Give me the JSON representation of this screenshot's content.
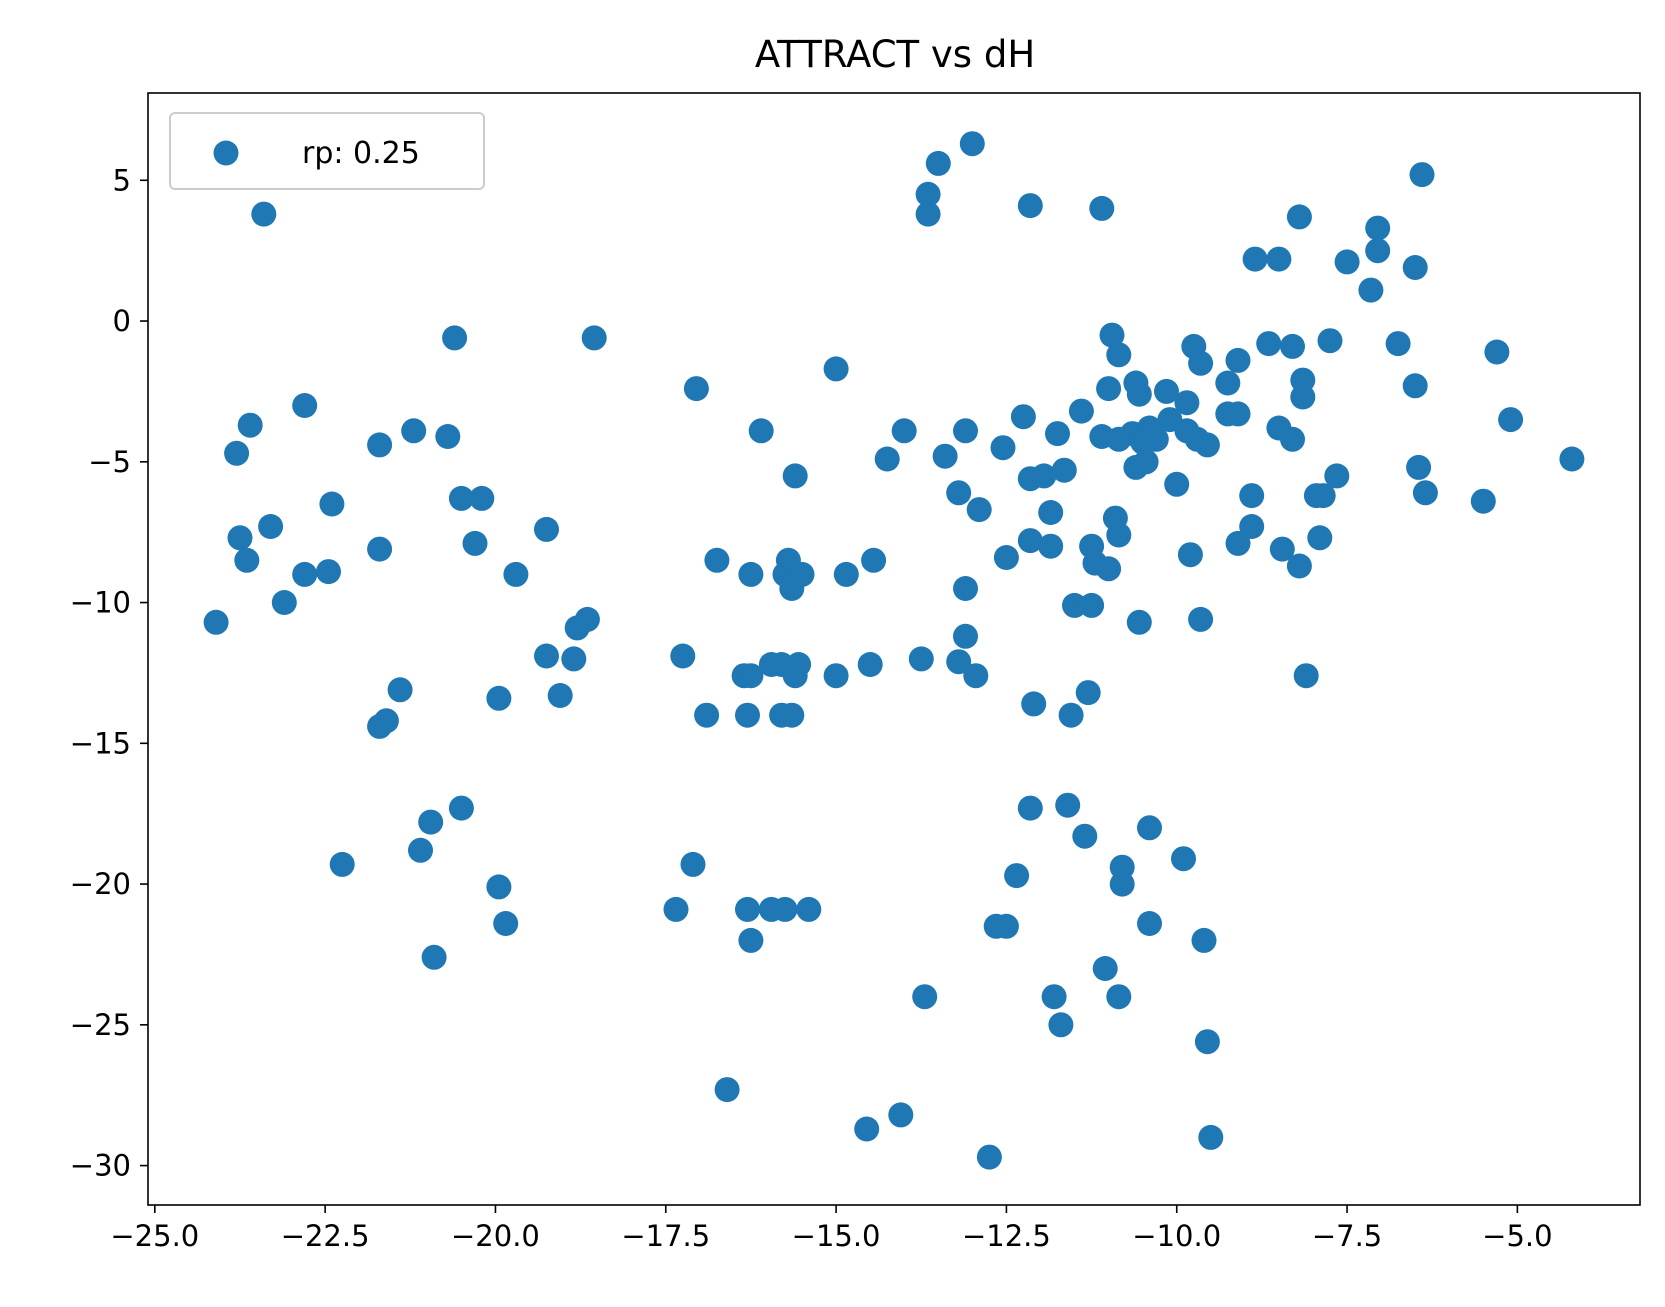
{
  "chart_data": {
    "type": "scatter",
    "title": "ATTRACT vs dH",
    "xlabel": "",
    "ylabel": "",
    "xlim": [
      -25.1,
      -3.2
    ],
    "ylim": [
      -31.4,
      8.1
    ],
    "x_ticks": [
      -25.0,
      -22.5,
      -20.0,
      -17.5,
      -15.0,
      -12.5,
      -10.0,
      -7.5,
      -5.0
    ],
    "x_tick_labels": [
      "−25.0",
      "−22.5",
      "−20.0",
      "−17.5",
      "−15.0",
      "−12.5",
      "−10.0",
      "−7.5",
      "−5.0"
    ],
    "y_ticks": [
      5,
      0,
      -5,
      -10,
      -15,
      -20,
      -25,
      -30
    ],
    "y_tick_labels": [
      "5",
      "0",
      "−5",
      "−10",
      "−15",
      "−20",
      "−25",
      "−30"
    ],
    "grid": false,
    "legend_position": "upper-left",
    "series": [
      {
        "name": "rp: 0.25",
        "color": "#1f77b4",
        "points": [
          [
            -23.4,
            3.8
          ],
          [
            -24.1,
            -10.7
          ],
          [
            -23.8,
            -4.7
          ],
          [
            -23.6,
            -3.7
          ],
          [
            -23.75,
            -7.7
          ],
          [
            -23.65,
            -8.5
          ],
          [
            -23.3,
            -7.3
          ],
          [
            -23.1,
            -10.0
          ],
          [
            -22.8,
            -3.0
          ],
          [
            -22.8,
            -9.0
          ],
          [
            -22.45,
            -8.9
          ],
          [
            -22.4,
            -6.5
          ],
          [
            -22.25,
            -19.3
          ],
          [
            -21.7,
            -4.4
          ],
          [
            -21.7,
            -8.1
          ],
          [
            -21.7,
            -14.4
          ],
          [
            -21.6,
            -14.2
          ],
          [
            -21.4,
            -13.1
          ],
          [
            -21.2,
            -3.9
          ],
          [
            -21.1,
            -18.8
          ],
          [
            -20.95,
            -17.8
          ],
          [
            -20.9,
            -22.6
          ],
          [
            -20.7,
            -4.1
          ],
          [
            -20.6,
            -0.6
          ],
          [
            -20.5,
            -6.3
          ],
          [
            -20.5,
            -17.3
          ],
          [
            -20.3,
            -7.9
          ],
          [
            -20.2,
            -6.3
          ],
          [
            -19.95,
            -20.1
          ],
          [
            -19.95,
            -13.4
          ],
          [
            -19.85,
            -21.4
          ],
          [
            -19.7,
            -9.0
          ],
          [
            -19.25,
            -7.4
          ],
          [
            -19.25,
            -11.9
          ],
          [
            -19.05,
            -13.3
          ],
          [
            -18.85,
            -12.0
          ],
          [
            -18.8,
            -10.9
          ],
          [
            -18.65,
            -10.6
          ],
          [
            -18.55,
            -0.6
          ],
          [
            -17.35,
            -20.9
          ],
          [
            -17.25,
            -11.9
          ],
          [
            -17.1,
            -19.3
          ],
          [
            -17.05,
            -2.4
          ],
          [
            -16.9,
            -14.0
          ],
          [
            -16.75,
            -8.5
          ],
          [
            -16.6,
            -27.3
          ],
          [
            -16.35,
            -12.6
          ],
          [
            -16.3,
            -20.9
          ],
          [
            -16.3,
            -14.0
          ],
          [
            -16.25,
            -12.6
          ],
          [
            -16.25,
            -9.0
          ],
          [
            -16.25,
            -22.0
          ],
          [
            -16.1,
            -3.9
          ],
          [
            -15.95,
            -12.2
          ],
          [
            -15.95,
            -20.9
          ],
          [
            -15.8,
            -14.0
          ],
          [
            -15.8,
            -12.2
          ],
          [
            -15.75,
            -20.9
          ],
          [
            -15.75,
            -9.0
          ],
          [
            -15.7,
            -8.5
          ],
          [
            -15.65,
            -14.0
          ],
          [
            -15.65,
            -9.5
          ],
          [
            -15.6,
            -12.6
          ],
          [
            -15.6,
            -5.5
          ],
          [
            -15.55,
            -12.2
          ],
          [
            -15.5,
            -9.0
          ],
          [
            -15.4,
            -20.9
          ],
          [
            -15.0,
            -12.6
          ],
          [
            -15.0,
            -1.7
          ],
          [
            -14.85,
            -9.0
          ],
          [
            -14.55,
            -28.7
          ],
          [
            -14.5,
            -12.2
          ],
          [
            -14.45,
            -8.5
          ],
          [
            -14.25,
            -4.9
          ],
          [
            -14.05,
            -28.2
          ],
          [
            -14.0,
            -3.9
          ],
          [
            -13.75,
            -12.0
          ],
          [
            -13.7,
            -24.0
          ],
          [
            -13.65,
            4.5
          ],
          [
            -13.65,
            3.8
          ],
          [
            -13.5,
            5.6
          ],
          [
            -13.4,
            -4.8
          ],
          [
            -13.2,
            -6.1
          ],
          [
            -13.2,
            -12.1
          ],
          [
            -13.1,
            -11.2
          ],
          [
            -13.1,
            -3.9
          ],
          [
            -13.1,
            -9.5
          ],
          [
            -13.0,
            6.3
          ],
          [
            -12.95,
            -12.6
          ],
          [
            -12.9,
            -6.7
          ],
          [
            -12.75,
            -29.7
          ],
          [
            -12.65,
            -21.5
          ],
          [
            -12.55,
            -4.5
          ],
          [
            -12.5,
            -8.4
          ],
          [
            -12.5,
            -21.5
          ],
          [
            -12.35,
            -19.7
          ],
          [
            -12.25,
            -3.4
          ],
          [
            -12.15,
            4.1
          ],
          [
            -12.15,
            -17.3
          ],
          [
            -12.15,
            -5.6
          ],
          [
            -12.15,
            -7.8
          ],
          [
            -12.1,
            -13.6
          ],
          [
            -11.95,
            -5.5
          ],
          [
            -11.85,
            -8.0
          ],
          [
            -11.85,
            -6.8
          ],
          [
            -11.8,
            -24.0
          ],
          [
            -11.75,
            -4.0
          ],
          [
            -11.7,
            -25.0
          ],
          [
            -11.65,
            -5.3
          ],
          [
            -11.6,
            -17.2
          ],
          [
            -11.55,
            -14.0
          ],
          [
            -11.5,
            -10.1
          ],
          [
            -11.4,
            -3.2
          ],
          [
            -11.35,
            -18.3
          ],
          [
            -11.3,
            -13.2
          ],
          [
            -11.25,
            -10.1
          ],
          [
            -11.25,
            -8.0
          ],
          [
            -11.2,
            -8.6
          ],
          [
            -11.1,
            4.0
          ],
          [
            -11.1,
            -4.1
          ],
          [
            -11.05,
            -23.0
          ],
          [
            -11.0,
            -2.4
          ],
          [
            -11.0,
            -8.8
          ],
          [
            -10.95,
            -0.5
          ],
          [
            -10.9,
            -7.0
          ],
          [
            -10.85,
            -7.6
          ],
          [
            -10.85,
            -1.2
          ],
          [
            -10.85,
            -4.2
          ],
          [
            -10.85,
            -24.0
          ],
          [
            -10.8,
            -19.4
          ],
          [
            -10.8,
            -20.0
          ],
          [
            -10.65,
            -4.0
          ],
          [
            -10.6,
            -2.2
          ],
          [
            -10.6,
            -5.2
          ],
          [
            -10.55,
            -10.7
          ],
          [
            -10.55,
            -2.6
          ],
          [
            -10.5,
            -4.3
          ],
          [
            -10.45,
            -5.0
          ],
          [
            -10.4,
            -3.8
          ],
          [
            -10.4,
            -18.0
          ],
          [
            -10.4,
            -21.4
          ],
          [
            -10.3,
            -4.2
          ],
          [
            -10.15,
            -2.5
          ],
          [
            -10.1,
            -3.5
          ],
          [
            -10.0,
            -5.8
          ],
          [
            -9.9,
            -19.1
          ],
          [
            -9.85,
            -2.9
          ],
          [
            -9.85,
            -3.9
          ],
          [
            -9.8,
            -8.3
          ],
          [
            -9.75,
            -0.9
          ],
          [
            -9.7,
            -4.2
          ],
          [
            -9.65,
            -10.6
          ],
          [
            -9.65,
            -1.5
          ],
          [
            -9.6,
            -22.0
          ],
          [
            -9.55,
            -25.6
          ],
          [
            -9.55,
            -4.4
          ],
          [
            -9.5,
            -29.0
          ],
          [
            -9.25,
            -2.2
          ],
          [
            -9.25,
            -3.3
          ],
          [
            -9.1,
            -3.3
          ],
          [
            -9.1,
            -7.9
          ],
          [
            -9.1,
            -1.4
          ],
          [
            -8.9,
            -7.3
          ],
          [
            -8.9,
            -6.2
          ],
          [
            -8.85,
            2.2
          ],
          [
            -8.65,
            -0.8
          ],
          [
            -8.5,
            2.2
          ],
          [
            -8.5,
            -3.8
          ],
          [
            -8.45,
            -8.1
          ],
          [
            -8.3,
            -4.2
          ],
          [
            -8.3,
            -0.9
          ],
          [
            -8.2,
            3.7
          ],
          [
            -8.2,
            -8.7
          ],
          [
            -8.15,
            -2.1
          ],
          [
            -8.15,
            -2.7
          ],
          [
            -8.1,
            -12.6
          ],
          [
            -7.95,
            -6.2
          ],
          [
            -7.9,
            -7.7
          ],
          [
            -7.85,
            -6.2
          ],
          [
            -7.75,
            -0.7
          ],
          [
            -7.65,
            -5.5
          ],
          [
            -7.5,
            2.1
          ],
          [
            -7.15,
            1.1
          ],
          [
            -7.05,
            3.3
          ],
          [
            -7.05,
            2.5
          ],
          [
            -6.75,
            -0.8
          ],
          [
            -6.5,
            1.9
          ],
          [
            -6.5,
            -2.3
          ],
          [
            -6.45,
            -5.2
          ],
          [
            -6.4,
            5.2
          ],
          [
            -6.35,
            -6.1
          ],
          [
            -5.5,
            -6.4
          ],
          [
            -5.3,
            -1.1
          ],
          [
            -5.1,
            -3.5
          ],
          [
            -4.2,
            -4.9
          ]
        ]
      }
    ]
  }
}
